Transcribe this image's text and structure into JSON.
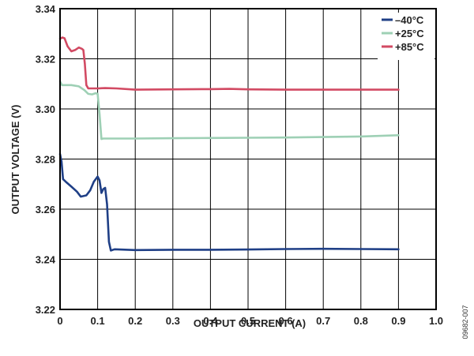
{
  "chart_data": {
    "type": "line",
    "xlabel": "OUTPUT CURRENT (A)",
    "ylabel": "OUTPUT VOLTAGE (V)",
    "xlim": [
      0,
      1.0
    ],
    "ylim": [
      3.22,
      3.34
    ],
    "x_ticks": [
      "0",
      "0.1",
      "0.2",
      "0.3",
      "0.4",
      "0.5",
      "0.6",
      "0.7",
      "0.8",
      "0.9",
      "1.0"
    ],
    "y_ticks": [
      "3.22",
      "3.24",
      "3.26",
      "3.28",
      "3.30",
      "3.32",
      "3.34"
    ],
    "grid": true,
    "legend_position": "top-right",
    "series": [
      {
        "name": "–40°C",
        "color": "#1f3f86",
        "points": [
          [
            0.0,
            3.282
          ],
          [
            0.004,
            3.279
          ],
          [
            0.008,
            3.272
          ],
          [
            0.015,
            3.271
          ],
          [
            0.03,
            3.269
          ],
          [
            0.045,
            3.267
          ],
          [
            0.055,
            3.265
          ],
          [
            0.07,
            3.2655
          ],
          [
            0.08,
            3.2675
          ],
          [
            0.09,
            3.271
          ],
          [
            0.1,
            3.273
          ],
          [
            0.105,
            3.2715
          ],
          [
            0.11,
            3.2665
          ],
          [
            0.115,
            3.268
          ],
          [
            0.12,
            3.2685
          ],
          [
            0.125,
            3.262
          ],
          [
            0.13,
            3.247
          ],
          [
            0.135,
            3.2435
          ],
          [
            0.145,
            3.244
          ],
          [
            0.2,
            3.2437
          ],
          [
            0.3,
            3.2438
          ],
          [
            0.4,
            3.2438
          ],
          [
            0.5,
            3.2439
          ],
          [
            0.6,
            3.2441
          ],
          [
            0.7,
            3.2442
          ],
          [
            0.8,
            3.2441
          ],
          [
            0.9,
            3.244
          ]
        ]
      },
      {
        "name": "+25°C",
        "color": "#9ed0b5",
        "points": [
          [
            0.0,
            3.311
          ],
          [
            0.005,
            3.3095
          ],
          [
            0.03,
            3.3095
          ],
          [
            0.05,
            3.309
          ],
          [
            0.065,
            3.3075
          ],
          [
            0.075,
            3.306
          ],
          [
            0.085,
            3.3058
          ],
          [
            0.095,
            3.3063
          ],
          [
            0.1,
            3.306
          ],
          [
            0.105,
            3.298
          ],
          [
            0.11,
            3.288
          ],
          [
            0.115,
            3.2882
          ],
          [
            0.2,
            3.2882
          ],
          [
            0.3,
            3.2883
          ],
          [
            0.4,
            3.2884
          ],
          [
            0.5,
            3.2885
          ],
          [
            0.6,
            3.2886
          ],
          [
            0.7,
            3.2888
          ],
          [
            0.8,
            3.289
          ],
          [
            0.9,
            3.2895
          ]
        ]
      },
      {
        "name": "+85°C",
        "color": "#d24a63",
        "points": [
          [
            0.0,
            3.328
          ],
          [
            0.006,
            3.3285
          ],
          [
            0.012,
            3.3282
          ],
          [
            0.02,
            3.325
          ],
          [
            0.03,
            3.323
          ],
          [
            0.04,
            3.3235
          ],
          [
            0.05,
            3.3245
          ],
          [
            0.058,
            3.324
          ],
          [
            0.062,
            3.3235
          ],
          [
            0.066,
            3.318
          ],
          [
            0.07,
            3.3095
          ],
          [
            0.075,
            3.3082
          ],
          [
            0.1,
            3.3082
          ],
          [
            0.12,
            3.3083
          ],
          [
            0.15,
            3.3082
          ],
          [
            0.2,
            3.3077
          ],
          [
            0.3,
            3.3078
          ],
          [
            0.4,
            3.3079
          ],
          [
            0.45,
            3.308
          ],
          [
            0.5,
            3.3078
          ],
          [
            0.6,
            3.3077
          ],
          [
            0.7,
            3.3077
          ],
          [
            0.8,
            3.3077
          ],
          [
            0.9,
            3.3077
          ]
        ]
      }
    ]
  },
  "figure_id": "09682-007"
}
